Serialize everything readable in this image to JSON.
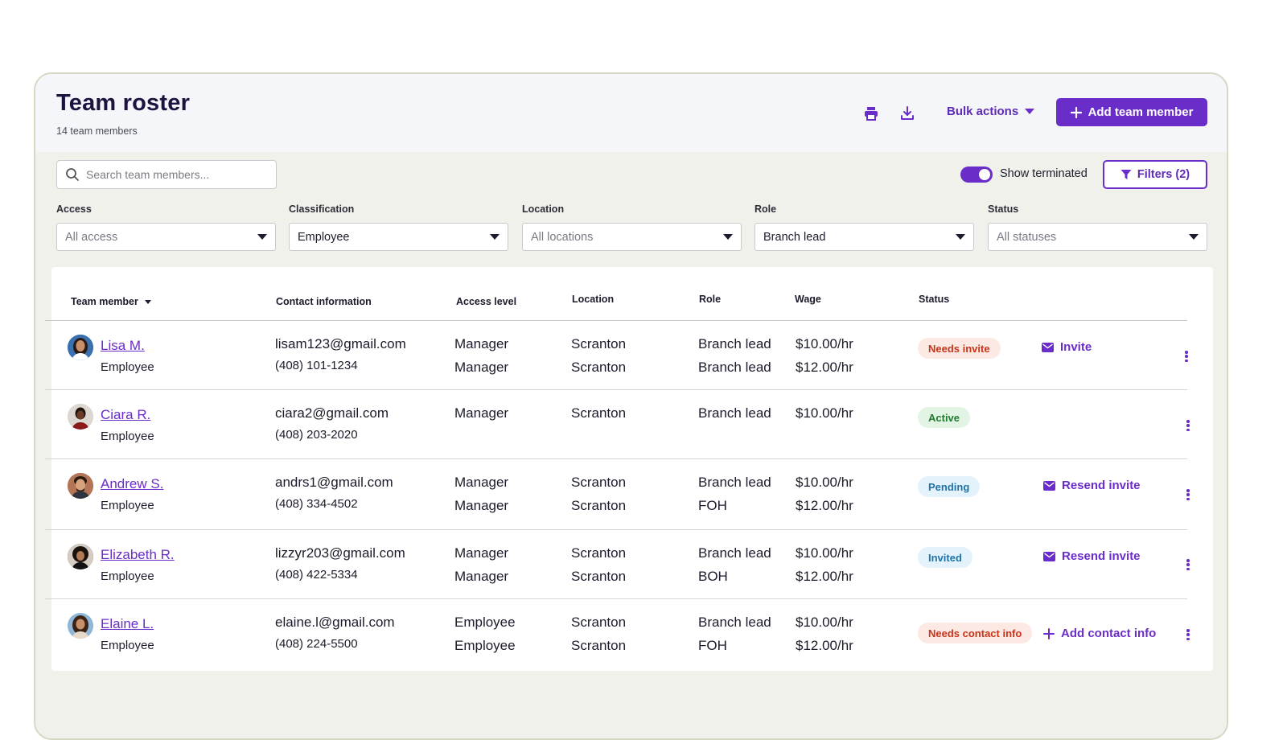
{
  "header": {
    "title": "Team roster",
    "subtitle": "14 team members",
    "print_icon": "printer-icon",
    "download_icon": "download-icon",
    "bulk_actions_label": "Bulk actions",
    "add_button_label": "Add team member"
  },
  "toolbar": {
    "search_placeholder": "Search team members...",
    "show_terminated_label": "Show terminated",
    "show_terminated_on": true,
    "filters_label": "Filters (2)"
  },
  "filters": [
    {
      "label": "Access",
      "value": "All access",
      "placeholder": true
    },
    {
      "label": "Classification",
      "value": "Employee",
      "placeholder": false
    },
    {
      "label": "Location",
      "value": "All locations",
      "placeholder": true
    },
    {
      "label": "Role",
      "value": "Branch lead",
      "placeholder": false
    },
    {
      "label": "Status",
      "value": "All statuses",
      "placeholder": true
    }
  ],
  "table": {
    "columns": [
      "Team member",
      "Contact information",
      "Access level",
      "Location",
      "Role",
      "Wage",
      "Status"
    ],
    "rows": [
      {
        "name": "Lisa M.",
        "classification": "Employee",
        "email": "lisam123@gmail.com",
        "phone": "(408) 101-1234",
        "access": [
          "Manager",
          "Manager"
        ],
        "location": [
          "Scranton",
          "Scranton"
        ],
        "role": [
          "Branch lead",
          "Branch lead"
        ],
        "wage": [
          "$10.00/hr",
          "$12.00/hr"
        ],
        "status": "Needs invite",
        "action": "Invite"
      },
      {
        "name": "Ciara R.",
        "classification": "Employee",
        "email": "ciara2@gmail.com",
        "phone": "(408) 203-2020",
        "access": [
          "Manager"
        ],
        "location": [
          "Scranton"
        ],
        "role": [
          "Branch lead"
        ],
        "wage": [
          "$10.00/hr"
        ],
        "status": "Active",
        "action": ""
      },
      {
        "name": "Andrew S.",
        "classification": "Employee",
        "email": "andrs1@gmail.com",
        "phone": "(408) 334-4502",
        "access": [
          "Manager",
          "Manager"
        ],
        "location": [
          "Scranton",
          "Scranton"
        ],
        "role": [
          "Branch lead",
          "FOH"
        ],
        "wage": [
          "$10.00/hr",
          "$12.00/hr"
        ],
        "status": "Pending",
        "action": "Resend invite"
      },
      {
        "name": "Elizabeth R.",
        "classification": "Employee",
        "email": "lizzyr203@gmail.com",
        "phone": "(408) 422-5334",
        "access": [
          "Manager",
          "Manager"
        ],
        "location": [
          "Scranton",
          "Scranton"
        ],
        "role": [
          "Branch lead",
          "BOH"
        ],
        "wage": [
          "$10.00/hr",
          "$12.00/hr"
        ],
        "status": "Invited",
        "action": "Resend invite"
      },
      {
        "name": "Elaine L.",
        "classification": "Employee",
        "email": "elaine.l@gmail.com",
        "phone": "(408) 224-5500",
        "access": [
          "Employee",
          "Employee"
        ],
        "location": [
          "Scranton",
          "Scranton"
        ],
        "role": [
          "Branch lead",
          "FOH"
        ],
        "wage": [
          "$10.00/hr",
          "$12.00/hr"
        ],
        "status": "Needs contact info",
        "action": "Add contact info"
      }
    ]
  },
  "colors": {
    "accent": "#6a2dc9",
    "badge_red": "#c8341a",
    "badge_green": "#1f7a2e",
    "badge_blue": "#1f72a8"
  }
}
